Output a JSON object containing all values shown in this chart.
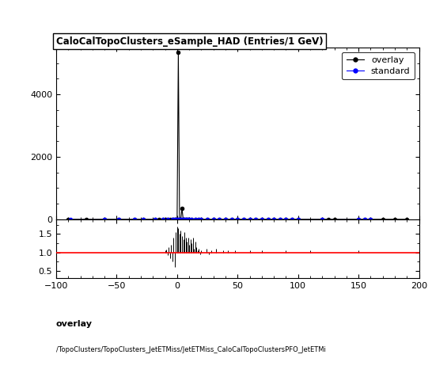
{
  "title": "CaloCalTopoClusters_eSample_HAD (Entries/1 GeV)",
  "xlim": [
    -100,
    200
  ],
  "main_ylim": [
    0,
    5500
  ],
  "ratio_ylim": [
    0.3,
    1.9
  ],
  "ratio_yticks": [
    0.5,
    1.0,
    1.5
  ],
  "legend_entries": [
    "overlay",
    "standard"
  ],
  "ratio_hline": 1.0,
  "ratio_hline_color": "red",
  "footer_line1": "overlay",
  "footer_line2": "/TopoClusters/TopoClusters_JetETMiss/JetETMiss_CaloCalTopoClustersPFO_JetETMi",
  "overlay_x": [
    -90,
    -75,
    -60,
    -48,
    -35,
    -28,
    -18,
    -15,
    -12,
    -10,
    -8,
    -6,
    -4,
    -3,
    -2,
    -1,
    0,
    1,
    2,
    3,
    4,
    5,
    6,
    7,
    8,
    9,
    10,
    12,
    15,
    18,
    20,
    25,
    30,
    35,
    40,
    45,
    50,
    55,
    60,
    65,
    70,
    75,
    80,
    85,
    90,
    95,
    100,
    120,
    125,
    130,
    150,
    155,
    160,
    170,
    180,
    190
  ],
  "overlay_y": [
    0,
    0,
    0,
    0,
    0,
    0,
    0,
    0,
    0,
    0,
    0,
    0,
    0,
    0,
    0,
    0,
    0,
    5350,
    0,
    0,
    350,
    0,
    0,
    0,
    0,
    0,
    0,
    0,
    0,
    0,
    0,
    0,
    0,
    0,
    0,
    0,
    0,
    0,
    0,
    0,
    0,
    0,
    0,
    0,
    0,
    0,
    0,
    0,
    0,
    0,
    0,
    0,
    0,
    0,
    0,
    0
  ],
  "standard_x": [
    -88,
    -60,
    -48,
    -35,
    -28,
    -18,
    -12,
    -8,
    -4,
    -2,
    -1,
    0,
    1,
    2,
    3,
    4,
    5,
    6,
    7,
    8,
    9,
    10,
    12,
    15,
    18,
    20,
    25,
    30,
    35,
    40,
    45,
    50,
    55,
    60,
    65,
    70,
    75,
    80,
    85,
    90,
    95,
    100,
    120,
    150,
    155,
    160
  ],
  "standard_y": [
    0,
    0,
    0,
    0,
    0,
    0,
    0,
    0,
    0,
    0,
    0,
    0,
    0,
    0,
    0,
    0,
    0,
    0,
    0,
    0,
    0,
    0,
    0,
    0,
    0,
    0,
    0,
    0,
    0,
    0,
    0,
    0,
    0,
    0,
    0,
    0,
    0,
    0,
    0,
    0,
    0,
    0,
    0,
    0,
    0,
    0
  ],
  "ratio_spike_x": [
    -10,
    -9,
    -8,
    -7,
    -6,
    -5,
    -4,
    -3,
    -2,
    -1,
    0,
    1,
    2,
    3,
    4,
    5,
    6,
    7,
    8,
    9,
    10,
    11,
    12,
    13,
    14,
    15,
    16,
    17,
    18,
    19,
    20,
    22,
    24,
    26,
    28,
    30,
    32,
    35,
    38,
    40,
    42,
    45,
    48,
    50,
    52,
    55,
    58,
    60,
    65,
    70,
    75,
    80,
    85,
    90,
    100,
    110,
    120,
    130,
    150,
    165,
    180
  ],
  "ratio_spike_y": [
    1.05,
    1.08,
    0.92,
    1.15,
    0.85,
    1.2,
    0.75,
    1.4,
    0.6,
    1.55,
    1.7,
    1.65,
    1.5,
    1.6,
    1.45,
    1.35,
    1.55,
    1.4,
    1.3,
    1.4,
    1.2,
    1.35,
    1.25,
    1.4,
    1.1,
    1.3,
    1.15,
    1.05,
    1.1,
    0.95,
    1.05,
    1.0,
    1.1,
    0.95,
    1.05,
    1.0,
    1.1,
    1.0,
    1.05,
    1.0,
    1.05,
    1.0,
    1.05,
    1.0,
    1.0,
    1.0,
    1.0,
    1.05,
    1.0,
    1.05,
    1.0,
    1.0,
    1.0,
    1.05,
    1.0,
    1.05,
    1.0,
    1.0,
    1.05,
    1.0,
    1.0
  ]
}
